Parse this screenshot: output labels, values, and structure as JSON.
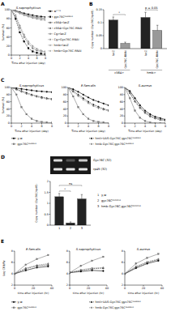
{
  "chart_data": [
    {
      "type": "line",
      "panel": "A",
      "title": "S.saprophyticus",
      "x_label": "Time after injection (day)",
      "y_label": "Survival (%)",
      "x": [
        0,
        1,
        2,
        3,
        4,
        5,
        6,
        7,
        8
      ],
      "xlim": [
        0,
        8
      ],
      "xticks": [
        0,
        2,
        4,
        6,
        8
      ],
      "ylim": [
        0,
        100
      ],
      "yticks": [
        0,
        20,
        40,
        60,
        80,
        100
      ],
      "legend": "right",
      "series": [
        {
          "name": "w¹¹¹⁸",
          "color": "#000000",
          "marker": "circle",
          "line_style": "solid",
          "values": [
            100,
            98,
            95,
            92,
            90,
            88,
            86,
            85,
            84
          ]
        },
        {
          "name": "gyc76Cᴷᴳ⁰⁸⁰³⁴",
          "color": "#000000",
          "marker": "square",
          "line_style": "dashed",
          "values": [
            100,
            80,
            50,
            30,
            15,
            8,
            5,
            3,
            2
          ]
        },
        {
          "name": "c564>lacZ",
          "color": "#555555",
          "marker": "triangle",
          "line_style": "solid",
          "values": [
            100,
            97,
            94,
            90,
            87,
            85,
            83,
            82,
            80
          ]
        },
        {
          "name": "c564>Gyc76C-RNAi",
          "color": "#555555",
          "marker": "triangle",
          "line_style": "dashed",
          "values": [
            100,
            85,
            60,
            40,
            25,
            15,
            10,
            8,
            6
          ]
        },
        {
          "name": "Cg>lacZ",
          "color": "#888888",
          "marker": "diamond",
          "line_style": "solid",
          "values": [
            100,
            96,
            92,
            88,
            85,
            82,
            80,
            78,
            77
          ]
        },
        {
          "name": "Cg>Gyc76C-RNAi",
          "color": "#888888",
          "marker": "diamond",
          "line_style": "dashed",
          "values": [
            100,
            88,
            65,
            45,
            30,
            20,
            14,
            10,
            8
          ]
        },
        {
          "name": "hmb>lacZ",
          "color": "#aaaaaa",
          "marker": "circle",
          "line_style": "solid",
          "values": [
            100,
            97,
            93,
            89,
            86,
            84,
            82,
            81,
            80
          ]
        },
        {
          "name": "hmb>Gyc76C-RNAi",
          "color": "#aaaaaa",
          "marker": "circle",
          "line_style": "dashed",
          "values": [
            100,
            86,
            62,
            42,
            28,
            18,
            12,
            9,
            7
          ]
        }
      ]
    },
    {
      "type": "bar",
      "panel": "B",
      "y_label": "Copy number (Gyc76C/rp49)",
      "categories": [
        "lacZ",
        "Gyc76C-RNAi",
        "lacZ",
        "Gyc76C-RNAi"
      ],
      "groups": [
        "c564>",
        "hmb>"
      ],
      "values": [
        0.11,
        0.02,
        0.12,
        0.07
      ],
      "errors": [
        0.012,
        0.005,
        0.02,
        0.02
      ],
      "colors": [
        "#222222",
        "#999999",
        "#222222",
        "#999999"
      ],
      "ylim": [
        0,
        0.15
      ],
      "yticks": [
        0,
        0.05,
        0.1,
        0.15
      ],
      "annotations": [
        "*",
        "p = 0.05"
      ]
    },
    {
      "type": "line",
      "panel": "C",
      "title": "S.saprophyticus",
      "x_label": "Time after injection (day)",
      "y_label": "Survival (%)",
      "x": [
        0,
        1,
        2,
        3,
        4,
        5,
        6,
        7,
        8
      ],
      "xlim": [
        0,
        8
      ],
      "xticks": [
        0,
        2,
        4,
        6,
        8
      ],
      "ylim": [
        0,
        100
      ],
      "yticks": [
        0,
        20,
        40,
        60,
        80,
        100
      ],
      "legend": "bottom",
      "series": [
        {
          "name": "y,w",
          "color": "#000000",
          "marker": "circle",
          "line_style": "solid",
          "values": [
            100,
            98,
            96,
            94,
            92,
            90,
            89,
            88,
            87
          ]
        },
        {
          "name": "gyc76Cᴷᴳ⁰⁸⁰³⁴",
          "color": "#777777",
          "marker": "square",
          "line_style": "solid",
          "values": [
            100,
            80,
            45,
            25,
            12,
            6,
            3,
            2,
            1
          ]
        },
        {
          "name": "hml>UAS-Gyc76C;gyc76Cᴷᴳ⁰⁸⁰³⁴",
          "color": "#000000",
          "marker": "triangle",
          "line_style": "dashed",
          "values": [
            100,
            95,
            90,
            85,
            80,
            76,
            73,
            70,
            68
          ]
        },
        {
          "name": "hmb-Gyc76C;gyc76Cᴷᴳ⁰⁸⁰³⁴",
          "color": "#777777",
          "marker": "diamond",
          "line_style": "dashed",
          "values": [
            100,
            94,
            88,
            82,
            78,
            74,
            70,
            68,
            66
          ]
        }
      ]
    },
    {
      "type": "line",
      "title": "E.faecalis",
      "x_label": "Time after injection (day)",
      "x": [
        0,
        1,
        2,
        3,
        4,
        5,
        6,
        7,
        8
      ],
      "xlim": [
        0,
        8
      ],
      "xticks": [
        0,
        2,
        4,
        6,
        8
      ],
      "ylim": [
        0,
        100
      ],
      "yticks": [
        0,
        20,
        40,
        60,
        80,
        100
      ],
      "series": [
        {
          "color": "#000000",
          "marker": "circle",
          "line_style": "solid",
          "values": [
            100,
            95,
            88,
            80,
            72,
            65,
            60,
            55,
            50
          ]
        },
        {
          "color": "#777777",
          "marker": "square",
          "line_style": "solid",
          "values": [
            100,
            75,
            45,
            25,
            12,
            6,
            3,
            2,
            0
          ]
        },
        {
          "color": "#000000",
          "marker": "triangle",
          "line_style": "dashed",
          "values": [
            100,
            90,
            80,
            70,
            60,
            52,
            46,
            40,
            36
          ]
        },
        {
          "color": "#777777",
          "marker": "diamond",
          "line_style": "dashed",
          "values": [
            100,
            88,
            76,
            66,
            56,
            48,
            42,
            38,
            34
          ]
        }
      ]
    },
    {
      "type": "line",
      "title": "S.aureus",
      "x_label": "Time after injection (day)",
      "x": [
        0,
        1,
        2,
        3,
        4,
        5,
        6,
        7,
        8
      ],
      "xlim": [
        0,
        8
      ],
      "xticks": [
        0,
        2,
        4,
        6,
        8
      ],
      "ylim": [
        0,
        100
      ],
      "yticks": [
        0,
        20,
        40,
        60,
        80,
        100
      ],
      "series": [
        {
          "color": "#000000",
          "marker": "circle",
          "line_style": "solid",
          "values": [
            100,
            90,
            70,
            50,
            35,
            25,
            18,
            14,
            10
          ]
        },
        {
          "color": "#777777",
          "marker": "square",
          "line_style": "solid",
          "values": [
            100,
            70,
            35,
            15,
            6,
            2,
            0,
            0,
            0
          ]
        },
        {
          "color": "#000000",
          "marker": "triangle",
          "line_style": "dashed",
          "values": [
            100,
            85,
            62,
            44,
            30,
            20,
            14,
            10,
            8
          ]
        },
        {
          "color": "#777777",
          "marker": "diamond",
          "line_style": "dashed",
          "values": [
            100,
            84,
            60,
            42,
            28,
            18,
            13,
            9,
            7
          ]
        }
      ]
    },
    {
      "type": "bar",
      "panel": "D",
      "y_label": "Copy number (Gyc76C/rp49)",
      "gel_bands": [
        "Gyc76C (32)",
        "rp49 (32)"
      ],
      "categories": [
        "1",
        "2",
        "3"
      ],
      "category_names": [
        "y,w",
        "gyc76Cᴷᴳ⁰⁸⁰³⁴",
        "hmb-Gyc76C;gyc76Cᴷᴳ⁰⁸⁰³⁴"
      ],
      "values": [
        1.3,
        0.1,
        1.2
      ],
      "errors": [
        0.15,
        0.05,
        0.2
      ],
      "colors": [
        "#222222",
        "#222222",
        "#222222"
      ],
      "ylim": [
        0,
        2
      ],
      "yticks": [
        0,
        0.5,
        1,
        1.5,
        2
      ],
      "annotations": [
        "*",
        "ns"
      ]
    },
    {
      "type": "line",
      "panel": "E",
      "title": "E.faecalis",
      "x_label": "time after injection (hr)",
      "y_label": "Log CFU/fly",
      "x": [
        0,
        12,
        24,
        36
      ],
      "xlim": [
        0,
        40
      ],
      "xticks": [
        0,
        20,
        40
      ],
      "ylim": [
        2,
        8
      ],
      "yticks": [
        2,
        4,
        6,
        8
      ],
      "legend": "bottom",
      "series": [
        {
          "name": "y,w",
          "color": "#000000",
          "marker": "circle",
          "line_style": "solid",
          "values": [
            4,
            4.6,
            5.1,
            5.3
          ]
        },
        {
          "name": "gyc76Cᴷᴳ⁰⁸⁰³⁴",
          "color": "#777777",
          "marker": "square",
          "line_style": "solid",
          "values": [
            4,
            5.6,
            6.6,
            7.3
          ]
        },
        {
          "name": "hml>UAS-Gyc76C;gyc76Cᴷᴳ⁰⁸⁰³⁴",
          "color": "#000000",
          "marker": "triangle",
          "line_style": "dashed",
          "values": [
            4,
            4.9,
            5.4,
            5.6
          ]
        },
        {
          "name": "hmb-Gyc76C;gyc76Cᴷᴳ⁰⁸⁰³⁴",
          "color": "#777777",
          "marker": "diamond",
          "line_style": "dashed",
          "values": [
            4,
            5.0,
            5.5,
            5.8
          ]
        }
      ]
    },
    {
      "type": "line",
      "title": "S.saprophyticus",
      "x_label": "time after injection (hr)",
      "x": [
        0,
        12,
        24,
        36
      ],
      "xlim": [
        0,
        40
      ],
      "xticks": [
        0,
        20,
        40
      ],
      "ylim": [
        2,
        8
      ],
      "yticks": [
        2,
        4,
        6,
        8
      ],
      "series": [
        {
          "color": "#000000",
          "marker": "circle",
          "line_style": "solid",
          "values": [
            4.2,
            4.4,
            4.6,
            4.5
          ]
        },
        {
          "color": "#777777",
          "marker": "square",
          "line_style": "solid",
          "values": [
            4.2,
            5.4,
            6.3,
            7.0
          ]
        },
        {
          "color": "#000000",
          "marker": "triangle",
          "line_style": "dashed",
          "values": [
            4.2,
            4.6,
            4.9,
            5.0
          ]
        },
        {
          "color": "#777777",
          "marker": "diamond",
          "line_style": "dashed",
          "values": [
            4.2,
            4.7,
            5.0,
            5.1
          ]
        }
      ]
    },
    {
      "type": "line",
      "title": "S.aureus",
      "x_label": "time after injection (hr)",
      "x": [
        0,
        12,
        24,
        36
      ],
      "xlim": [
        0,
        40
      ],
      "xticks": [
        0,
        20,
        40
      ],
      "ylim": [
        2,
        8
      ],
      "yticks": [
        2,
        4,
        6,
        8
      ],
      "series": [
        {
          "color": "#000000",
          "marker": "circle",
          "line_style": "solid",
          "values": [
            4,
            5,
            5.8,
            6.3
          ]
        },
        {
          "color": "#777777",
          "marker": "square",
          "line_style": "solid",
          "values": [
            4,
            5.8,
            6.8,
            7.5
          ]
        },
        {
          "color": "#000000",
          "marker": "triangle",
          "line_style": "dashed",
          "values": [
            4,
            5.2,
            6.0,
            6.5
          ]
        },
        {
          "color": "#777777",
          "marker": "diamond",
          "line_style": "dashed",
          "values": [
            4,
            5.3,
            6.1,
            6.6
          ]
        }
      ]
    }
  ]
}
